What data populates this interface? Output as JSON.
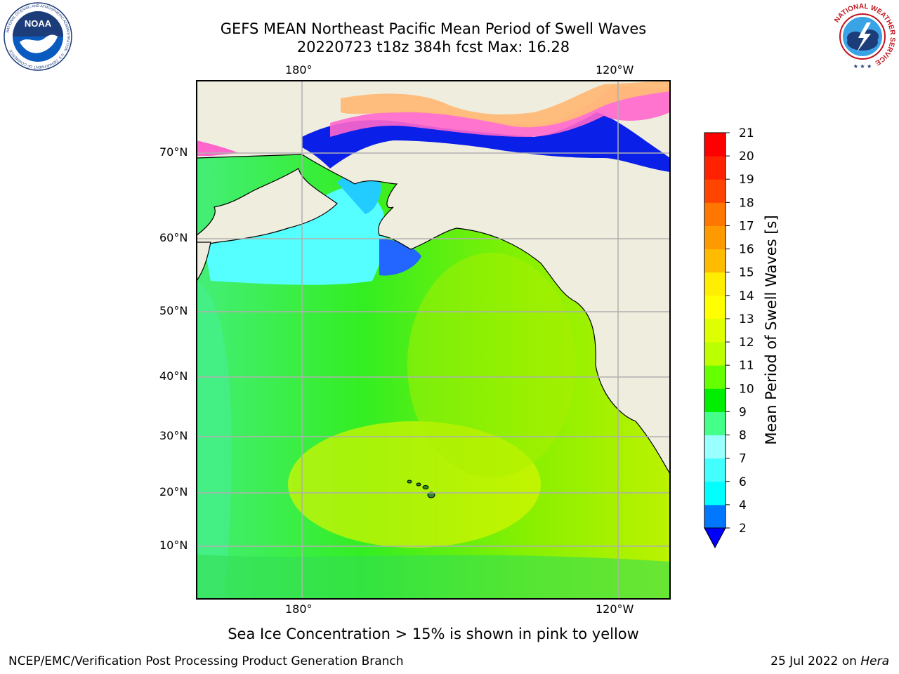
{
  "title": {
    "line1": "GEFS MEAN Northeast Pacific Mean Period of Swell Waves",
    "line2": "20220723 t18z 384h fcst   Max: 16.28"
  },
  "map": {
    "top_lon_labels": [
      "180°",
      "120°W"
    ],
    "bottom_lon_labels": [
      "180°",
      "120°W"
    ],
    "lat_labels": [
      "70°N",
      "60°N",
      "50°N",
      "40°N",
      "30°N",
      "20°N",
      "10°N"
    ],
    "caption": "Sea Ice Concentration > 15% is shown in pink to yellow",
    "colors": {
      "land": "#efedde",
      "coast": "#000000",
      "grid": "#b0b0b0"
    }
  },
  "colorbar": {
    "label": "Mean Period of Swell Waves [s]",
    "ticks": [
      "2",
      "4",
      "6",
      "7",
      "8",
      "9",
      "10",
      "11",
      "12",
      "13",
      "14",
      "15",
      "16",
      "17",
      "18",
      "19",
      "20",
      "21"
    ],
    "colors": [
      "#0000ff",
      "#0077ff",
      "#00ffff",
      "#44ffff",
      "#99ffff",
      "#44ff88",
      "#00ee00",
      "#66ff00",
      "#bbff00",
      "#ddff00",
      "#ffff00",
      "#ffee00",
      "#ffbb00",
      "#ff9900",
      "#ff7700",
      "#ff4400",
      "#ff2200",
      "#ff0000"
    ],
    "under_color": "#0000ff"
  },
  "logos": {
    "noaa": {
      "text": "NOAA",
      "ring": "NATIONAL OCEANIC AND ATMOSPHERIC ADMINISTRATION · U.S. DEPARTMENT OF COMMERCE"
    },
    "nws": {
      "ring": "NATIONAL WEATHER SERVICE"
    }
  },
  "footer": {
    "left": "NCEP/EMC/Verification Post Processing Product Generation Branch",
    "right_date": "25 Jul 2022 on",
    "right_machine": "Hera"
  }
}
